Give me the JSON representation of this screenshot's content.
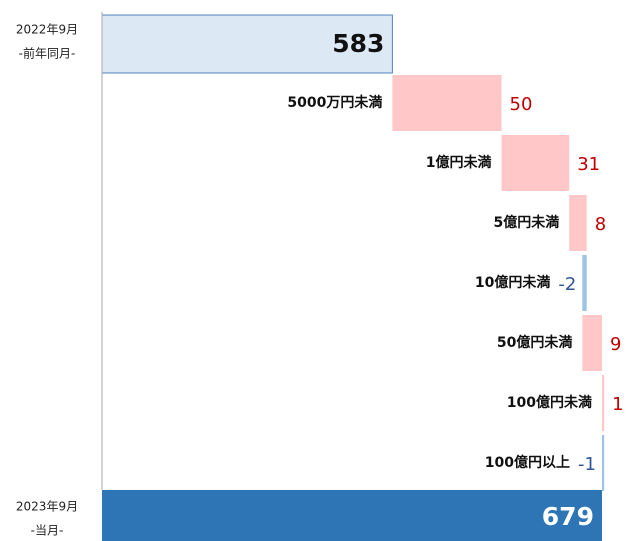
{
  "chart_data": {
    "type": "waterfall",
    "start": {
      "label": [
        "2022年9月",
        "-前年同月-"
      ],
      "value": 583,
      "color": "#dde8f5",
      "border": "#4f7fba"
    },
    "categories": [
      "5000万円未満",
      "1億円未満",
      "5億円未満",
      "10億円未満",
      "50億円未満",
      "100億円未満",
      "100億円以上"
    ],
    "values": [
      50,
      31,
      8,
      -2,
      9,
      1,
      -1
    ],
    "end": {
      "label": [
        "2023年9月",
        "-当月-"
      ],
      "value": 679,
      "color": "#2e75b6"
    },
    "increase_color": "#ffc7c7",
    "decrease_color": "#9dc3e6",
    "increase_text_color": "#c00000",
    "decrease_text_color": "#2f5597",
    "xlim": [
      450,
      690
    ]
  }
}
